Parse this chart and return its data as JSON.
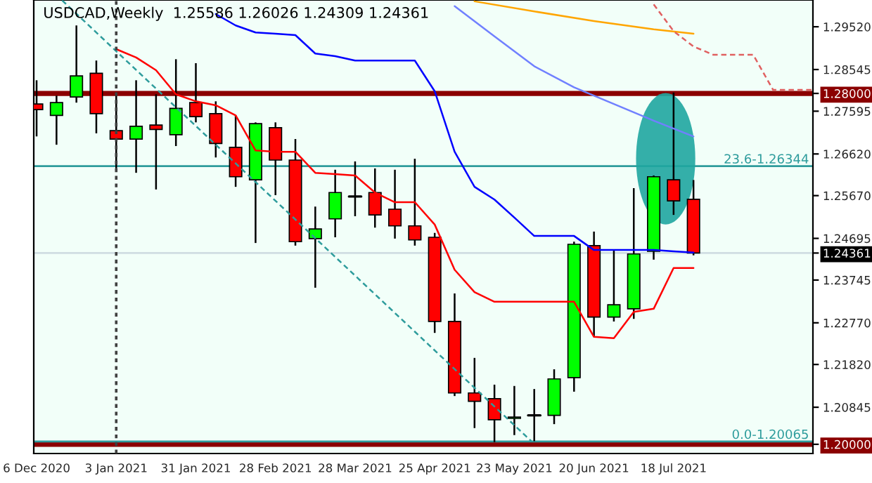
{
  "chart_data": {
    "type": "candlestick",
    "title": "USDCAD,Weekly  1.25586 1.26026 1.24309 1.24361",
    "x": [
      "2020-12-06",
      "2020-12-13",
      "2020-12-20",
      "2020-12-27",
      "2021-01-03",
      "2021-01-10",
      "2021-01-17",
      "2021-01-24",
      "2021-01-31",
      "2021-02-07",
      "2021-02-14",
      "2021-02-21",
      "2021-02-28",
      "2021-03-07",
      "2021-03-14",
      "2021-03-21",
      "2021-03-28",
      "2021-04-04",
      "2021-04-11",
      "2021-04-18",
      "2021-04-25",
      "2021-05-02",
      "2021-05-09",
      "2021-05-16",
      "2021-05-23",
      "2021-05-30",
      "2021-06-06",
      "2021-06-13",
      "2021-06-20",
      "2021-06-27",
      "2021-07-04",
      "2021-07-11",
      "2021-07-18",
      "2021-07-25"
    ],
    "ohlc": [
      [
        1.2776,
        1.283,
        1.2702,
        1.2763
      ],
      [
        1.275,
        1.2795,
        1.2683,
        1.2779
      ],
      [
        1.2792,
        1.2955,
        1.2779,
        1.284
      ],
      [
        1.2846,
        1.2875,
        1.2709,
        1.2754
      ],
      [
        1.2715,
        1.2798,
        1.2629,
        1.2696
      ],
      [
        1.2696,
        1.283,
        1.2619,
        1.2725
      ],
      [
        1.2728,
        1.2798,
        1.2581,
        1.2718
      ],
      [
        1.2706,
        1.2878,
        1.268,
        1.2766
      ],
      [
        1.2779,
        1.2869,
        1.2734,
        1.2747
      ],
      [
        1.2754,
        1.2782,
        1.2654,
        1.2686
      ],
      [
        1.2677,
        1.275,
        1.2587,
        1.261
      ],
      [
        1.2603,
        1.2734,
        1.2459,
        1.2731
      ],
      [
        1.2722,
        1.2734,
        1.2568,
        1.2648
      ],
      [
        1.2648,
        1.2696,
        1.2453,
        1.2462
      ],
      [
        1.2469,
        1.2542,
        1.2357,
        1.2491
      ],
      [
        1.2514,
        1.2626,
        1.2472,
        1.2574
      ],
      [
        1.2565,
        1.2645,
        1.252,
        1.2565
      ],
      [
        1.2574,
        1.2629,
        1.2494,
        1.2523
      ],
      [
        1.2536,
        1.2626,
        1.2469,
        1.2498
      ],
      [
        1.2498,
        1.2651,
        1.2453,
        1.2466
      ],
      [
        1.2472,
        1.2482,
        1.2254,
        1.228
      ],
      [
        1.228,
        1.2344,
        1.211,
        1.2117
      ],
      [
        1.2117,
        1.2197,
        1.2037,
        1.2098
      ],
      [
        1.2104,
        1.2136,
        1.2005,
        1.2056
      ],
      [
        1.2059,
        1.2133,
        1.2021,
        1.2062
      ],
      [
        1.2066,
        1.2126,
        1.2007,
        1.2066
      ],
      [
        1.2066,
        1.2171,
        1.2046,
        1.2149
      ],
      [
        1.2152,
        1.2462,
        1.212,
        1.2456
      ],
      [
        1.2453,
        1.2485,
        1.2245,
        1.229
      ],
      [
        1.229,
        1.2443,
        1.228,
        1.2318
      ],
      [
        1.2309,
        1.2584,
        1.2286,
        1.2434
      ],
      [
        1.244,
        1.2613,
        1.2421,
        1.261
      ],
      [
        1.2603,
        1.2802,
        1.2523,
        1.2555
      ],
      [
        1.25586,
        1.26026,
        1.24309,
        1.24361
      ]
    ],
    "colors": [
      "#ff0000",
      "#00ff00",
      "#00ff00",
      "#ff0000",
      "#ff0000",
      "#00ff00",
      "#ff0000",
      "#00ff00",
      "#ff0000",
      "#ff0000",
      "#ff0000",
      "#00ff00",
      "#ff0000",
      "#ff0000",
      "#00ff00",
      "#00ff00",
      "#000000",
      "#ff0000",
      "#ff0000",
      "#ff0000",
      "#ff0000",
      "#ff0000",
      "#ff0000",
      "#ff0000",
      "#00ff00",
      "#000000",
      "#00ff00",
      "#00ff00",
      "#ff0000",
      "#00ff00",
      "#00ff00",
      "#00ff00",
      "#ff0000",
      "#ff0000"
    ],
    "series": [
      {
        "type": "line",
        "color": "#ff0000",
        "x": [
          "2021-01-03",
          "2021-01-10",
          "2021-01-17",
          "2021-01-24",
          "2021-01-31",
          "2021-02-07",
          "2021-02-14",
          "2021-02-21",
          "2021-02-28",
          "2021-03-07",
          "2021-03-14",
          "2021-03-21",
          "2021-03-28",
          "2021-04-04",
          "2021-04-11",
          "2021-04-18",
          "2021-04-25",
          "2021-05-02",
          "2021-05-09",
          "2021-05-16",
          "2021-05-23",
          "2021-05-30",
          "2021-06-06",
          "2021-06-13",
          "2021-06-20",
          "2021-06-27",
          "2021-07-04",
          "2021-07-11",
          "2021-07-18",
          "2021-07-25"
        ],
        "values": [
          1.2901,
          1.2882,
          1.2853,
          1.2798,
          1.2782,
          1.2773,
          1.275,
          1.267,
          1.2667,
          1.2667,
          1.2619,
          1.2616,
          1.2613,
          1.2574,
          1.2552,
          1.2552,
          1.2501,
          1.2398,
          1.2347,
          1.2325,
          1.2325,
          1.2325,
          1.2325,
          1.2325,
          1.2245,
          1.2242,
          1.2302,
          1.2309,
          1.2402,
          1.2402
        ]
      },
      {
        "type": "line",
        "color": "#0000ff",
        "x": [
          "2021-02-07",
          "2021-02-14",
          "2021-02-21",
          "2021-02-28",
          "2021-03-07",
          "2021-03-14",
          "2021-03-21",
          "2021-03-28",
          "2021-04-04",
          "2021-04-11",
          "2021-04-18",
          "2021-04-25",
          "2021-05-02",
          "2021-05-09",
          "2021-05-16",
          "2021-05-23",
          "2021-05-30",
          "2021-06-06",
          "2021-06-13",
          "2021-06-20",
          "2021-06-27",
          "2021-07-04",
          "2021-07-11",
          "2021-07-18",
          "2021-07-25"
        ],
        "values": [
          1.2981,
          1.2955,
          1.2939,
          1.2936,
          1.2933,
          1.2891,
          1.2885,
          1.2875,
          1.2875,
          1.2875,
          1.2875,
          1.2805,
          1.2667,
          1.2587,
          1.2558,
          1.2517,
          1.2475,
          1.2475,
          1.2475,
          1.2443,
          1.2443,
          1.2443,
          1.2443,
          1.244,
          1.2437
        ]
      },
      {
        "type": "line",
        "color": "#7080ff",
        "x": [
          "2021-05-02",
          "2021-05-16",
          "2021-05-30",
          "2021-06-13",
          "2021-06-27",
          "2021-07-11",
          "2021-07-25"
        ],
        "values": [
          1.2999,
          1.293,
          1.2862,
          1.2814,
          1.2776,
          1.2738,
          1.2702
        ]
      },
      {
        "type": "line",
        "color": "#ffa500",
        "x": [
          "2021-05-09",
          "2021-05-30",
          "2021-06-20",
          "2021-07-11",
          "2021-07-25"
        ],
        "values": [
          1.301,
          1.2987,
          1.2965,
          1.2946,
          1.2936
        ]
      },
      {
        "type": "line",
        "color": "#e06060",
        "line_style": "dashed",
        "x": [
          "2021-07-11",
          "2021-07-18",
          "2021-07-25",
          "2021-08-01",
          "2021-08-15",
          "2021-08-22",
          "2021-09-05"
        ],
        "values": [
          1.3003,
          1.2942,
          1.2907,
          1.2888,
          1.2888,
          1.2808,
          1.2808
        ]
      },
      {
        "type": "line",
        "color": "#2e9c9c",
        "line_style": "dashed",
        "x": [
          "2020-12-15",
          "2021-05-29"
        ],
        "values": [
          1.3012,
          1.2007
        ]
      }
    ],
    "ref_lines": [
      {
        "axis": "y",
        "value": 1.28,
        "color": "#8b0000"
      },
      {
        "axis": "y",
        "value": 1.2,
        "color": "#8b0000"
      },
      {
        "axis": "y",
        "value": 1.26344,
        "color": "#2e9c9c"
      },
      {
        "axis": "y",
        "value": 1.20065,
        "color": "#2e9c9c"
      },
      {
        "axis": "y",
        "value": 1.24361,
        "color": "#d0dde2"
      },
      {
        "axis": "x",
        "value": "2021-01-03",
        "color": "#404040",
        "line_style": "dotted"
      }
    ],
    "annotations": [
      {
        "text": "23.6-1.26344",
        "y": 1.26344
      },
      {
        "text": "0.0-1.20065",
        "y": 1.20065
      }
    ],
    "xlim": [
      "2020-12-05",
      "2021-09-05"
    ],
    "ylim": [
      1.1979,
      1.3013
    ],
    "xticks": [
      {
        "value": "2020-12-06",
        "label": "6 Dec 2020"
      },
      {
        "value": "2021-01-03",
        "label": "3 Jan 2021"
      },
      {
        "value": "2021-01-31",
        "label": "31 Jan 2021"
      },
      {
        "value": "2021-02-28",
        "label": "28 Feb 2021"
      },
      {
        "value": "2021-03-28",
        "label": "28 Mar 2021"
      },
      {
        "value": "2021-04-25",
        "label": "25 Apr 2021"
      },
      {
        "value": "2021-05-23",
        "label": "23 May 2021"
      },
      {
        "value": "2021-06-20",
        "label": "20 Jun 2021"
      },
      {
        "value": "2021-07-18",
        "label": "18 Jul 2021"
      }
    ],
    "yticks": [
      {
        "value": 1.2952,
        "label": "1.29520"
      },
      {
        "value": 1.28545,
        "label": "1.28545"
      },
      {
        "value": 1.28,
        "label": "1.28000"
      },
      {
        "value": 1.27595,
        "label": "1.27595"
      },
      {
        "value": 1.2662,
        "label": "1.26620"
      },
      {
        "value": 1.2567,
        "label": "1.25670"
      },
      {
        "value": 1.24695,
        "label": "1.24695"
      },
      {
        "value": 1.24361,
        "label": "1.24361"
      },
      {
        "value": 1.23745,
        "label": "1.23745"
      },
      {
        "value": 1.2277,
        "label": "1.22770"
      },
      {
        "value": 1.2182,
        "label": "1.21820"
      },
      {
        "value": 1.20845,
        "label": "1.20845"
      },
      {
        "value": 1.2,
        "label": "1.20000"
      }
    ]
  }
}
